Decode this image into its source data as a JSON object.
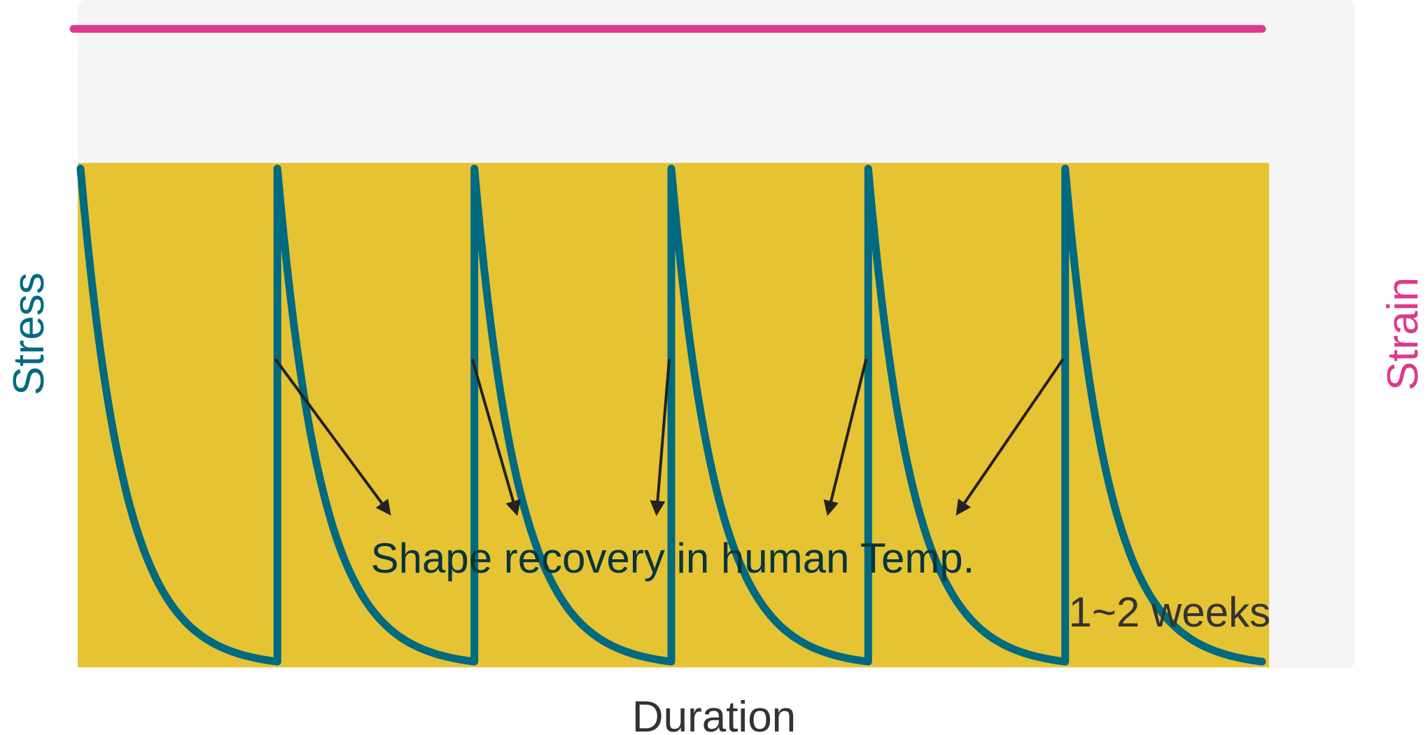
{
  "chart_data": {
    "type": "line",
    "title": "",
    "xlabel": "Duration",
    "ylabel_left": "Stress",
    "ylabel_right": "Strain",
    "annotation": "Shape recovery in human Temp.",
    "duration_note": "1~2 weeks",
    "xlim": [
      0,
      6
    ],
    "ylim": [
      0,
      1
    ],
    "band": {
      "y_low": 0.2,
      "y_high": 0.8
    },
    "series": [
      {
        "name": "Strain",
        "color": "#dc3a8c",
        "points": [
          [
            0,
            0.97
          ],
          [
            6,
            0.97
          ]
        ]
      },
      {
        "name": "Stress",
        "color": "#006a80",
        "cycles": 6,
        "peak": 0.8,
        "trough": 0.2,
        "decay_rate": 4.5
      }
    ],
    "annotation_arrow_targets": [
      1,
      2,
      3,
      4,
      5
    ],
    "colors": {
      "panel": "#f5f5f5",
      "band": "#e6c333",
      "stress": "#006a80",
      "strain": "#dc3a8c",
      "arrow": "#222222",
      "annotation_text": "#08353d",
      "axis_text": "#333333"
    }
  }
}
